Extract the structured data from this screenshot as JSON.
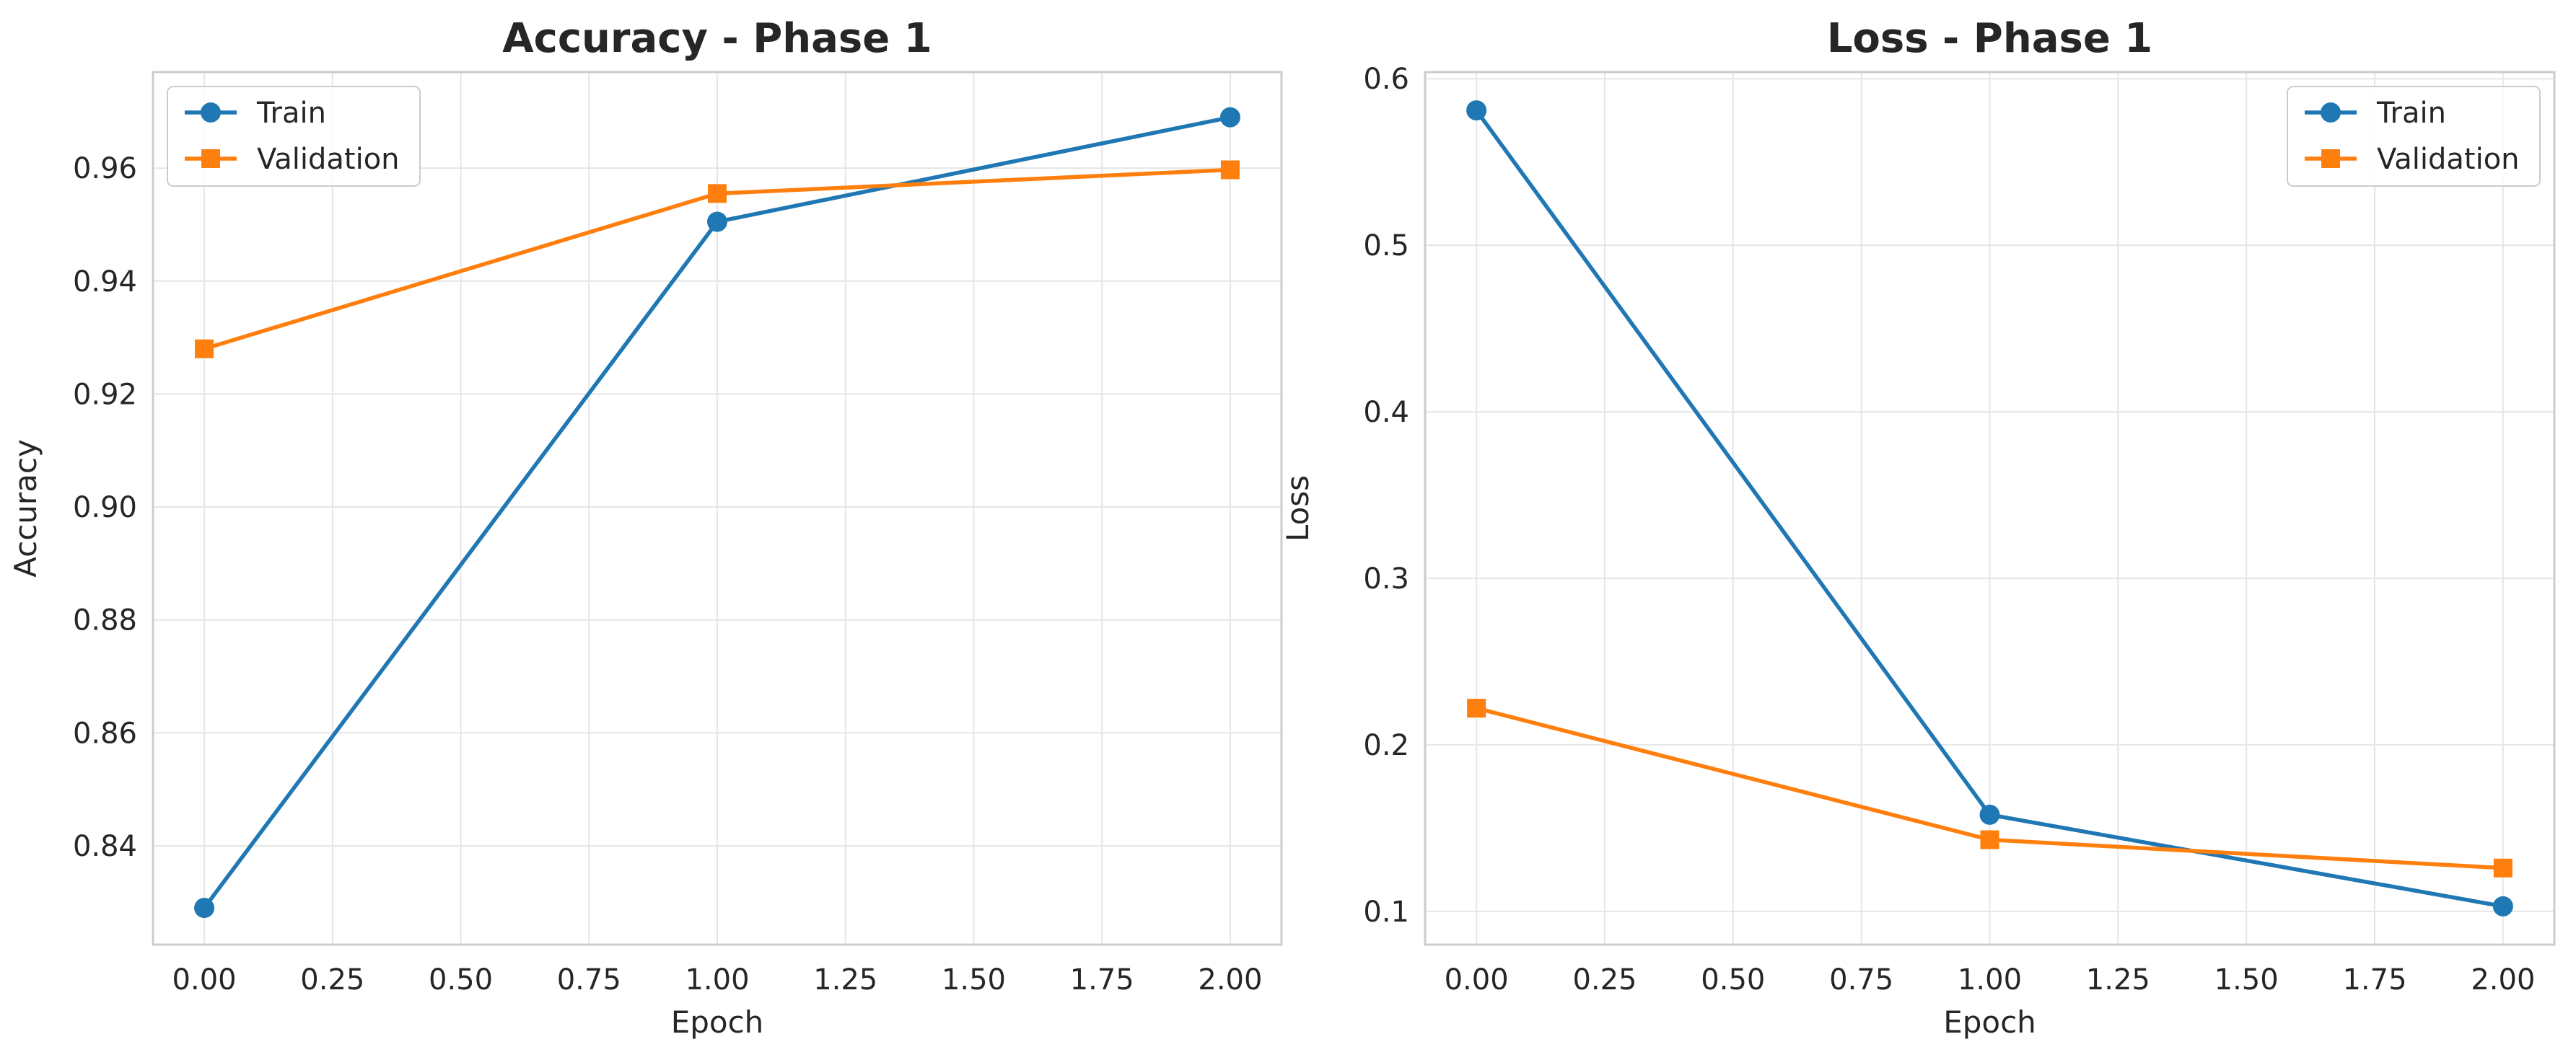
{
  "chart_data": [
    {
      "type": "line",
      "title": "Accuracy - Phase 1",
      "xlabel": "Epoch",
      "ylabel": "Accuracy",
      "x": [
        0,
        1,
        2
      ],
      "xlim": [
        -0.1,
        2.1
      ],
      "ylim": [
        0.8225,
        0.977
      ],
      "xticks": [
        "0.00",
        "0.25",
        "0.50",
        "0.75",
        "1.00",
        "1.25",
        "1.50",
        "1.75",
        "2.00"
      ],
      "yticks": [
        "0.84",
        "0.86",
        "0.88",
        "0.90",
        "0.92",
        "0.94",
        "0.96"
      ],
      "grid": true,
      "legend": "top-left",
      "series": [
        {
          "name": "Train",
          "values": [
            0.829,
            0.9505,
            0.969
          ],
          "color": "#1f77b4",
          "marker": "circle"
        },
        {
          "name": "Validation",
          "values": [
            0.928,
            0.9555,
            0.9597
          ],
          "color": "#ff7f0e",
          "marker": "square"
        }
      ]
    },
    {
      "type": "line",
      "title": "Loss - Phase 1",
      "xlabel": "Epoch",
      "ylabel": "Loss",
      "x": [
        0,
        1,
        2
      ],
      "xlim": [
        -0.1,
        2.1
      ],
      "ylim": [
        0.08,
        0.604
      ],
      "xticks": [
        "0.00",
        "0.25",
        "0.50",
        "0.75",
        "1.00",
        "1.25",
        "1.50",
        "1.75",
        "2.00"
      ],
      "yticks": [
        "0.1",
        "0.2",
        "0.3",
        "0.4",
        "0.5",
        "0.6"
      ],
      "grid": true,
      "legend": "top-right",
      "series": [
        {
          "name": "Train",
          "values": [
            0.581,
            0.158,
            0.103
          ],
          "color": "#1f77b4",
          "marker": "circle"
        },
        {
          "name": "Validation",
          "values": [
            0.222,
            0.143,
            0.126
          ],
          "color": "#ff7f0e",
          "marker": "square"
        }
      ]
    }
  ]
}
